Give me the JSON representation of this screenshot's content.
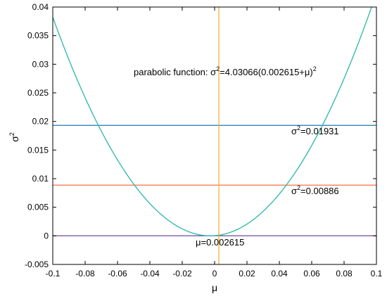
{
  "chart_data": {
    "type": "line",
    "xlabel": "μ",
    "ylabel_base": "σ",
    "ylabel_sup": "2",
    "xlim": [
      -0.1,
      0.1
    ],
    "ylim": [
      -0.005,
      0.04
    ],
    "x_ticks": [
      -0.1,
      -0.08,
      -0.06,
      -0.04,
      -0.02,
      0,
      0.02,
      0.04,
      0.06,
      0.08,
      0.1
    ],
    "x_tick_labels": [
      "-0.1",
      "-0.08",
      "-0.06",
      "-0.04",
      "-0.02",
      "0",
      "0.02",
      "0.04",
      "0.06",
      "0.08",
      "0.1"
    ],
    "y_ticks": [
      -0.005,
      0,
      0.005,
      0.01,
      0.015,
      0.02,
      0.025,
      0.03,
      0.035,
      0.04
    ],
    "y_tick_labels": [
      "-0.005",
      "0",
      "0.005",
      "0.01",
      "0.015",
      "0.02",
      "0.025",
      "0.03",
      "0.035",
      "0.04"
    ],
    "grid": false,
    "parabola": {
      "coefficient": 4.03066,
      "shift": 0.002615,
      "color": "#2ab7a9"
    },
    "hlines": [
      {
        "y": 0.01931,
        "color": "#1f77b4"
      },
      {
        "y": 0.00886,
        "color": "#f2704a"
      },
      {
        "y": 0,
        "color": "#7e5aa8"
      }
    ],
    "vlines": [
      {
        "x": 0.002615,
        "color": "#f0b429"
      }
    ],
    "annotations": {
      "parabola_label": {
        "prefix": "parabolic function: σ",
        "sup": "2",
        "mid": "=4.03066(0.002615+μ)",
        "sup2": "2"
      },
      "upper_line_label": {
        "prefix": "σ",
        "sup": "2",
        "suffix": "=0.01931"
      },
      "middle_line_label": {
        "prefix": "σ",
        "sup": "2",
        "suffix": "=0.00886"
      },
      "vertex_label": "μ=0.002615"
    }
  }
}
